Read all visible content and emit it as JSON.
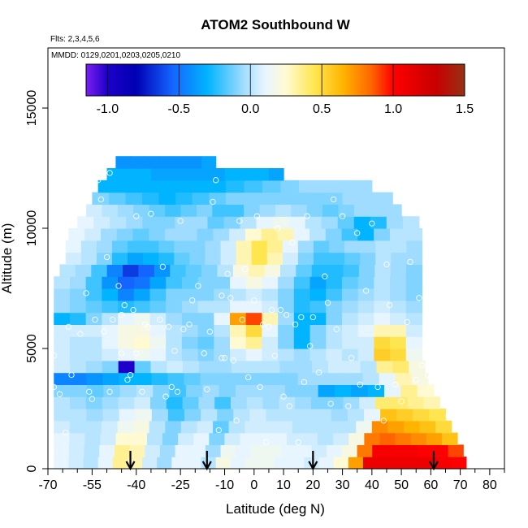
{
  "chart_data": {
    "type": "heatmap",
    "title": "ATOM2 Southbound W",
    "flights_note": "Flts: 2,3,4,5,6",
    "dates_note": "MMDD: 0129,0201,0203,0205,0210",
    "xlabel": "Latitude (deg N)",
    "ylabel": "Altitude (m)",
    "xlim": [
      -70,
      85
    ],
    "ylim": [
      0,
      17500
    ],
    "x_ticks": [
      -70,
      -55,
      -40,
      -25,
      -10,
      0,
      10,
      20,
      30,
      40,
      50,
      60,
      70,
      80
    ],
    "x_minor_ticks": [
      -65,
      -60,
      -50,
      -45,
      -35,
      -30,
      -20,
      -15,
      -5,
      5,
      15,
      25,
      35,
      45,
      55,
      65,
      75,
      85
    ],
    "y_ticks": [
      0,
      5000,
      10000,
      15000
    ],
    "colorbar": {
      "range": [
        -1.15,
        1.5
      ],
      "ticks": [
        -1.0,
        -0.5,
        0.0,
        0.5,
        1.0,
        1.5
      ],
      "tick_labels": [
        "-1.0",
        "-0.5",
        "0.0",
        "0.5",
        "1.0",
        "1.5"
      ],
      "color_stops": [
        {
          "v": -1.15,
          "c": "#7a1ff0"
        },
        {
          "v": -1.0,
          "c": "#1e00c8"
        },
        {
          "v": -0.8,
          "c": "#0000b4"
        },
        {
          "v": -0.55,
          "c": "#1464ff"
        },
        {
          "v": -0.3,
          "c": "#00b4ff"
        },
        {
          "v": -0.05,
          "c": "#a0dcff"
        },
        {
          "v": 0.1,
          "c": "#e6f5ff"
        },
        {
          "v": 0.25,
          "c": "#fffad2"
        },
        {
          "v": 0.45,
          "c": "#ffe650"
        },
        {
          "v": 0.65,
          "c": "#ffb400"
        },
        {
          "v": 0.85,
          "c": "#ff6400"
        },
        {
          "v": 1.0,
          "c": "#ff0000"
        },
        {
          "v": 1.3,
          "c": "#c80000"
        },
        {
          "v": 1.5,
          "c": "#963214"
        }
      ]
    },
    "altitude_layers_m": [
      0,
      500,
      1000,
      1500,
      2000,
      2500,
      3000,
      3500,
      4000,
      4500,
      5000,
      5500,
      6000,
      6500,
      7000,
      7500,
      8000,
      8500,
      9000,
      9500,
      10000,
      10500,
      11000,
      11500,
      12000,
      12500
    ],
    "latitude_extent_by_layer": [
      [
        -68,
        72
      ],
      [
        -68,
        71
      ],
      [
        -68,
        69
      ],
      [
        -68,
        67
      ],
      [
        -68,
        65
      ],
      [
        -68,
        63
      ],
      [
        -68,
        61
      ],
      [
        -68,
        59
      ],
      [
        -68,
        58
      ],
      [
        -68,
        57
      ],
      [
        -68,
        57
      ],
      [
        -68,
        57
      ],
      [
        -68,
        57
      ],
      [
        -68,
        57
      ],
      [
        -68,
        57
      ],
      [
        -68,
        57
      ],
      [
        -66,
        57
      ],
      [
        -64,
        57
      ],
      [
        -64,
        57
      ],
      [
        -63,
        57
      ],
      [
        -60,
        56
      ],
      [
        -57,
        50
      ],
      [
        -55,
        47
      ],
      [
        -53,
        40
      ],
      [
        -50,
        10
      ],
      [
        -47,
        -13
      ]
    ],
    "w_field_ms": [
      [
        0.1,
        0.05,
        0.0,
        0.1,
        0.35,
        0.3,
        0.05,
        -0.05,
        0.1,
        0.1,
        0.0,
        0.2,
        0.1,
        0.15,
        0.15,
        0.1,
        0.1,
        0.05,
        0.1,
        0.25,
        0.7,
        1.1,
        1.1,
        1.1,
        1.1,
        1.1,
        1.05,
        1.0
      ],
      [
        0.1,
        0.05,
        0.0,
        0.1,
        0.35,
        0.3,
        0.05,
        -0.05,
        0.1,
        0.1,
        -0.05,
        0.15,
        0.1,
        0.15,
        0.15,
        0.1,
        0.1,
        0.05,
        0.1,
        0.2,
        0.8,
        1.05,
        1.05,
        1.05,
        1.0,
        1.0,
        0.9
      ],
      [
        0.1,
        0.05,
        0.0,
        0.05,
        0.25,
        0.25,
        0.0,
        -0.1,
        0.05,
        0.1,
        -0.1,
        0.05,
        0.1,
        0.1,
        0.1,
        0.05,
        0.05,
        0.0,
        0.05,
        0.2,
        0.8,
        0.85,
        0.8,
        0.75,
        0.7,
        0.6
      ],
      [
        0.05,
        0.0,
        0.0,
        0.05,
        0.15,
        0.2,
        0.0,
        -0.1,
        0.0,
        0.05,
        -0.15,
        0.0,
        0.05,
        0.05,
        0.05,
        0.0,
        0.0,
        0.0,
        0.0,
        0.15,
        0.75,
        0.7,
        0.65,
        0.6,
        0.5
      ],
      [
        0.0,
        0.0,
        -0.05,
        0.0,
        0.1,
        0.15,
        -0.05,
        -0.2,
        -0.1,
        0.0,
        -0.1,
        0.0,
        0.05,
        0.0,
        0.0,
        0.0,
        0.0,
        -0.05,
        0.0,
        0.1,
        0.6,
        0.55,
        0.5,
        0.45
      ],
      [
        0.0,
        -0.05,
        -0.1,
        -0.05,
        0.0,
        0.05,
        -0.1,
        -0.25,
        -0.15,
        -0.05,
        -0.2,
        -0.05,
        0.0,
        -0.05,
        0.0,
        -0.05,
        -0.1,
        -0.1,
        -0.05,
        0.05,
        0.4,
        0.4,
        0.35,
        0.3
      ],
      [
        -0.1,
        -0.1,
        -0.15,
        -0.1,
        -0.05,
        0.0,
        -0.1,
        -0.2,
        -0.1,
        -0.05,
        -0.1,
        -0.05,
        -0.05,
        -0.05,
        -0.1,
        -0.1,
        -0.35,
        -0.3,
        -0.35,
        -0.3,
        0.1,
        0.35,
        0.25
      ],
      [
        -0.45,
        -0.45,
        -0.4,
        -0.35,
        -0.3,
        -0.3,
        -0.25,
        -0.2,
        -0.15,
        -0.1,
        -0.1,
        -0.1,
        -0.1,
        -0.1,
        -0.1,
        -0.05,
        -0.05,
        -0.05,
        -0.05,
        0.0,
        0.1,
        0.3,
        0.2
      ],
      [
        0.05,
        0.0,
        -0.05,
        -0.1,
        -1.0,
        -0.15,
        0.0,
        0.05,
        0.0,
        -0.05,
        -0.05,
        0.0,
        0.0,
        0.0,
        -0.05,
        -0.05,
        0.0,
        0.05,
        0.05,
        0.0,
        0.35,
        0.4,
        0.2
      ],
      [
        0.05,
        0.0,
        0.0,
        0.05,
        0.1,
        0.15,
        0.1,
        0.0,
        -0.05,
        -0.1,
        -0.05,
        0.05,
        0.1,
        0.05,
        0.0,
        -0.05,
        0.0,
        0.05,
        0.0,
        0.05,
        0.55,
        0.5,
        0.15
      ],
      [
        0.05,
        0.0,
        0.0,
        0.1,
        0.2,
        0.25,
        0.15,
        0.0,
        -0.1,
        -0.15,
        -0.05,
        0.25,
        0.35,
        0.05,
        -0.1,
        -0.3,
        -0.1,
        0.0,
        0.05,
        0.05,
        0.5,
        0.45,
        0.1
      ],
      [
        0.05,
        0.05,
        0.05,
        0.1,
        0.2,
        0.2,
        0.1,
        0.0,
        -0.05,
        -0.1,
        0.0,
        0.3,
        0.5,
        0.1,
        -0.1,
        -0.3,
        -0.1,
        0.0,
        0.05,
        0.1,
        0.3,
        0.3,
        0.05
      ],
      [
        -0.3,
        -0.25,
        -0.1,
        0.0,
        0.1,
        0.15,
        0.05,
        -0.05,
        -0.1,
        -0.1,
        0.1,
        0.7,
        0.9,
        0.3,
        -0.05,
        -0.3,
        -0.3,
        -0.1,
        0.0,
        0.05,
        0.1,
        0.05,
        0.0
      ],
      [
        -0.05,
        -0.1,
        -0.15,
        -0.2,
        -0.25,
        -0.2,
        -0.15,
        -0.1,
        -0.05,
        0.0,
        0.0,
        0.1,
        0.1,
        0.05,
        -0.1,
        -0.25,
        -0.2,
        -0.1,
        -0.05,
        0.0,
        0.05,
        0.0,
        -0.05
      ],
      [
        -0.05,
        -0.1,
        -0.2,
        -0.3,
        -0.45,
        -0.35,
        -0.2,
        -0.1,
        -0.1,
        -0.1,
        -0.05,
        0.0,
        0.05,
        0.0,
        -0.1,
        -0.25,
        -0.3,
        -0.2,
        -0.1,
        -0.05,
        0.0,
        -0.05,
        -0.1
      ],
      [
        0.0,
        -0.05,
        -0.2,
        -0.4,
        -0.55,
        -0.5,
        -0.35,
        -0.2,
        -0.15,
        -0.1,
        -0.1,
        0.1,
        0.2,
        0.1,
        -0.05,
        -0.2,
        -0.35,
        -0.25,
        -0.15,
        -0.1,
        0.0,
        -0.05,
        -0.1
      ],
      [
        0.0,
        -0.05,
        -0.2,
        -0.45,
        -0.65,
        -0.55,
        -0.4,
        -0.2,
        -0.15,
        -0.1,
        0.0,
        0.2,
        0.3,
        0.2,
        0.0,
        -0.15,
        -0.25,
        -0.25,
        -0.2,
        -0.1,
        0.0,
        -0.05,
        -0.1
      ],
      [
        0.05,
        0.0,
        -0.1,
        -0.25,
        -0.35,
        -0.3,
        -0.25,
        -0.15,
        -0.1,
        -0.05,
        0.05,
        0.3,
        0.45,
        0.3,
        0.05,
        -0.1,
        -0.2,
        -0.2,
        -0.15,
        -0.1,
        0.0,
        -0.05,
        -0.05
      ],
      [
        0.1,
        0.0,
        -0.05,
        -0.15,
        -0.2,
        -0.2,
        -0.15,
        -0.1,
        -0.1,
        -0.05,
        0.05,
        0.3,
        0.45,
        0.35,
        0.1,
        -0.05,
        -0.15,
        -0.1,
        -0.05,
        -0.05,
        0.0,
        0.0,
        -0.05
      ],
      [
        0.1,
        0.05,
        -0.05,
        -0.1,
        -0.15,
        -0.1,
        -0.05,
        -0.05,
        -0.1,
        -0.05,
        0.05,
        0.25,
        0.35,
        0.3,
        0.1,
        0.0,
        -0.1,
        -0.2,
        -0.3,
        -0.1,
        0.0,
        0.0
      ],
      [
        0.1,
        0.05,
        0.0,
        -0.05,
        -0.1,
        -0.1,
        -0.05,
        -0.05,
        -0.15,
        -0.1,
        0.0,
        0.1,
        0.15,
        0.1,
        0.0,
        -0.05,
        -0.15,
        -0.3,
        -0.25,
        -0.05,
        0.0
      ],
      [
        0.05,
        0.0,
        -0.05,
        -0.1,
        -0.15,
        -0.2,
        -0.15,
        -0.1,
        -0.2,
        -0.2,
        -0.1,
        -0.05,
        0.0,
        -0.05,
        -0.1,
        -0.15,
        -0.1,
        -0.05,
        -0.05,
        -0.05
      ],
      [
        -0.1,
        -0.15,
        -0.2,
        -0.25,
        -0.3,
        -0.25,
        -0.2,
        -0.15,
        -0.1,
        -0.1,
        -0.1,
        -0.1,
        -0.1,
        -0.1,
        -0.1,
        -0.05,
        -0.05,
        -0.05
      ],
      [
        -0.3,
        -0.3,
        -0.3,
        -0.3,
        -0.3,
        -0.3,
        -0.3,
        -0.25,
        -0.2,
        -0.15,
        -0.1,
        -0.05,
        -0.05,
        -0.05,
        -0.05
      ],
      [
        -0.3,
        -0.3,
        -0.3,
        -0.35,
        -0.35,
        -0.35,
        -0.35,
        -0.35,
        -0.3,
        -0.3,
        -0.3,
        -0.35
      ],
      [
        -0.4,
        -0.4,
        -0.4,
        -0.4,
        -0.4,
        -0.4,
        -0.35
      ]
    ],
    "profile_latitudes": [
      -42,
      -16,
      20,
      61
    ],
    "sample_points": [
      [
        -68,
        4700
      ],
      [
        -68,
        3400
      ],
      [
        -66,
        3100
      ],
      [
        -64,
        1500
      ],
      [
        -63,
        5900
      ],
      [
        -62,
        3900
      ],
      [
        -61,
        10300
      ],
      [
        -60,
        11600
      ],
      [
        -59,
        5600
      ],
      [
        -57,
        7300
      ],
      [
        -56,
        3200
      ],
      [
        -55,
        2900
      ],
      [
        -54,
        6200
      ],
      [
        -53,
        12000
      ],
      [
        -52,
        11200
      ],
      [
        -51,
        5700
      ],
      [
        -50,
        8800
      ],
      [
        -49,
        12300
      ],
      [
        -49,
        3200
      ],
      [
        -48,
        6200
      ],
      [
        -46,
        7600
      ],
      [
        -45,
        6400
      ],
      [
        -45,
        4800
      ],
      [
        -44,
        6800
      ],
      [
        -43,
        3700
      ],
      [
        -42,
        3900
      ],
      [
        -41,
        6600
      ],
      [
        -40,
        10500
      ],
      [
        -40,
        4800
      ],
      [
        -38,
        3200
      ],
      [
        -37,
        6000
      ],
      [
        -36,
        5900
      ],
      [
        -35,
        10600
      ],
      [
        -32,
        6200
      ],
      [
        -31,
        8400
      ],
      [
        -30,
        3000
      ],
      [
        -29,
        5900
      ],
      [
        -28,
        3400
      ],
      [
        -27,
        4900
      ],
      [
        -26,
        3200
      ],
      [
        -25,
        10300
      ],
      [
        -24,
        5800
      ],
      [
        -22,
        6000
      ],
      [
        -21,
        7000
      ],
      [
        -19,
        7600
      ],
      [
        -17,
        4800
      ],
      [
        -16,
        3300
      ],
      [
        -15,
        5700
      ],
      [
        -14,
        11100
      ],
      [
        -13,
        12000
      ],
      [
        -12,
        1600
      ],
      [
        -11,
        7200
      ],
      [
        -11,
        4600
      ],
      [
        -10,
        4600
      ],
      [
        -9,
        8100
      ],
      [
        -8,
        7100
      ],
      [
        -7,
        4500
      ],
      [
        -6,
        2000
      ],
      [
        -5,
        10300
      ],
      [
        -4,
        6200
      ],
      [
        -3,
        8300
      ],
      [
        -2,
        3800
      ],
      [
        0,
        7000
      ],
      [
        1,
        10500
      ],
      [
        2,
        3400
      ],
      [
        3,
        6000
      ],
      [
        4,
        1100
      ],
      [
        5,
        5900
      ],
      [
        6,
        6600
      ],
      [
        7,
        4700
      ],
      [
        8,
        10000
      ],
      [
        9,
        6600
      ],
      [
        10,
        3000
      ],
      [
        11,
        6400
      ],
      [
        12,
        2600
      ],
      [
        13,
        9400
      ],
      [
        14,
        6000
      ],
      [
        15,
        1100
      ],
      [
        16,
        6300
      ],
      [
        17,
        3600
      ],
      [
        18,
        10500
      ],
      [
        19,
        5100
      ],
      [
        20,
        6300
      ],
      [
        22,
        4000
      ],
      [
        24,
        8000
      ],
      [
        25,
        6900
      ],
      [
        26,
        2700
      ],
      [
        27,
        11200
      ],
      [
        28,
        5800
      ],
      [
        30,
        10500
      ],
      [
        32,
        2600
      ],
      [
        33,
        4600
      ],
      [
        35,
        9800
      ],
      [
        36,
        3500
      ],
      [
        38,
        7400
      ],
      [
        40,
        10200
      ],
      [
        42,
        3400
      ],
      [
        44,
        2000
      ],
      [
        45,
        8500
      ],
      [
        46,
        6800
      ],
      [
        48,
        3500
      ],
      [
        50,
        2800
      ],
      [
        52,
        6100
      ],
      [
        53,
        8600
      ],
      [
        55,
        3700
      ],
      [
        56,
        7100
      ],
      [
        57,
        4300
      ],
      [
        59,
        3900
      ],
      [
        61,
        6600
      ],
      [
        63,
        4700
      ],
      [
        65,
        3500
      ],
      [
        66,
        2200
      ],
      [
        69,
        3100
      ],
      [
        70,
        1700
      ]
    ]
  }
}
